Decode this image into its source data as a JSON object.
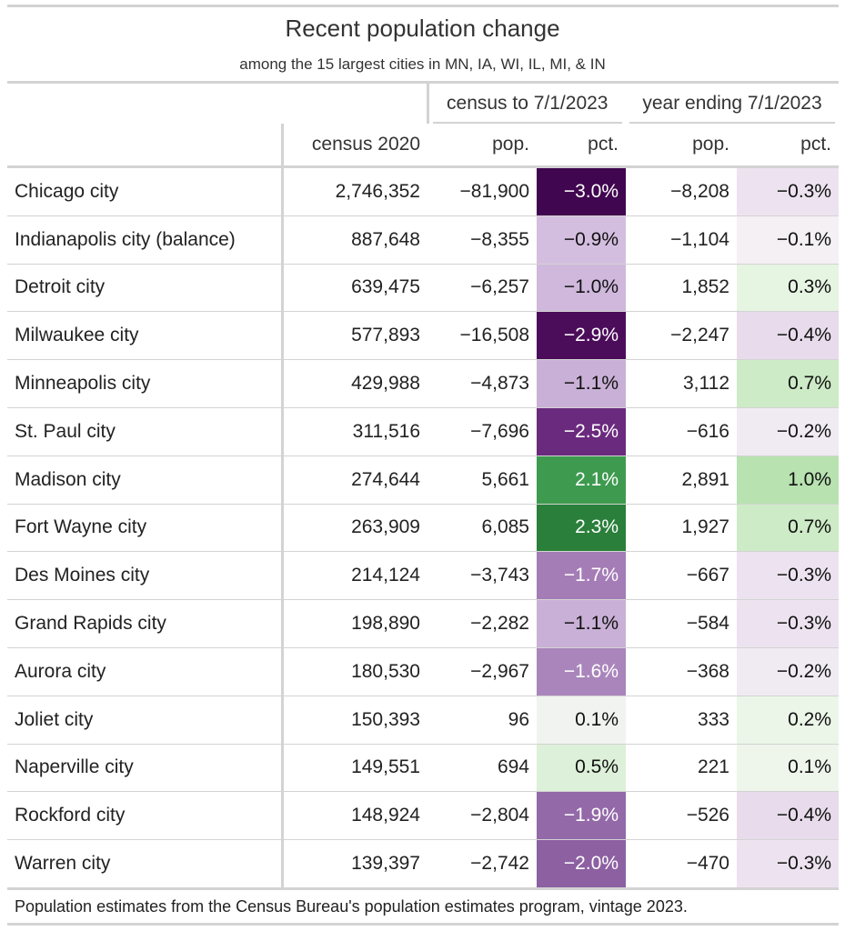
{
  "header": {
    "title": "Recent population change",
    "subtitle": "among the 15 largest cities in MN, IA, WI, IL, MI, & IN"
  },
  "table": {
    "spanners": [
      "census to 7/1/2023",
      "year ending 7/1/2023"
    ],
    "columns": [
      "census 2020",
      "pop.",
      "pct.",
      "pop.",
      "pct."
    ],
    "rows": [
      [
        "Chicago city",
        "2,746,352",
        "−81,900",
        "−3.0%",
        "−8,208",
        "−0.3%"
      ],
      [
        "Indianapolis city (balance)",
        "887,648",
        "−8,355",
        "−0.9%",
        "−1,104",
        "−0.1%"
      ],
      [
        "Detroit city",
        "639,475",
        "−6,257",
        "−1.0%",
        "1,852",
        "0.3%"
      ],
      [
        "Milwaukee city",
        "577,893",
        "−16,508",
        "−2.9%",
        "−2,247",
        "−0.4%"
      ],
      [
        "Minneapolis city",
        "429,988",
        "−4,873",
        "−1.1%",
        "3,112",
        "0.7%"
      ],
      [
        "St. Paul city",
        "311,516",
        "−7,696",
        "−2.5%",
        "−616",
        "−0.2%"
      ],
      [
        "Madison city",
        "274,644",
        "5,661",
        "2.1%",
        "2,891",
        "1.0%"
      ],
      [
        "Fort Wayne city",
        "263,909",
        "6,085",
        "2.3%",
        "1,927",
        "0.7%"
      ],
      [
        "Des Moines city",
        "214,124",
        "−3,743",
        "−1.7%",
        "−667",
        "−0.3%"
      ],
      [
        "Grand Rapids city",
        "198,890",
        "−2,282",
        "−1.1%",
        "−584",
        "−0.3%"
      ],
      [
        "Aurora city",
        "180,530",
        "−2,967",
        "−1.6%",
        "−368",
        "−0.2%"
      ],
      [
        "Joliet city",
        "150,393",
        "96",
        "0.1%",
        "333",
        "0.2%"
      ],
      [
        "Naperville city",
        "149,551",
        "694",
        "0.5%",
        "221",
        "0.1%"
      ],
      [
        "Rockford city",
        "148,924",
        "−2,804",
        "−1.9%",
        "−526",
        "−0.4%"
      ],
      [
        "Warren city",
        "139,397",
        "−2,742",
        "−2.0%",
        "−470",
        "−0.3%"
      ]
    ],
    "census_fill": [
      "#40064f",
      "#d4bedf",
      "#cfb8dc",
      "#4b0d5a",
      "#c9b0d6",
      "#6a2a7e",
      "#3d9a4f",
      "#2a7f3a",
      "#a47cb6",
      "#c9b0d6",
      "#a985bb",
      "#f1f3f0",
      "#ddf0d9",
      "#9369a8",
      "#8c60a1"
    ],
    "year_fill": [
      "#ede3f0",
      "#f4f0f4",
      "#e6f4e2",
      "#e8dcec",
      "#cdebc6",
      "#f0eaf2",
      "#b8e2b0",
      "#cdebc6",
      "#ede3f0",
      "#ede3f0",
      "#f0eaf2",
      "#ebf6e8",
      "#eef6ec",
      "#e8dcec",
      "#ede3f0"
    ]
  },
  "footnote": "Population estimates from the Census Bureau's population estimates program, vintage 2023."
}
